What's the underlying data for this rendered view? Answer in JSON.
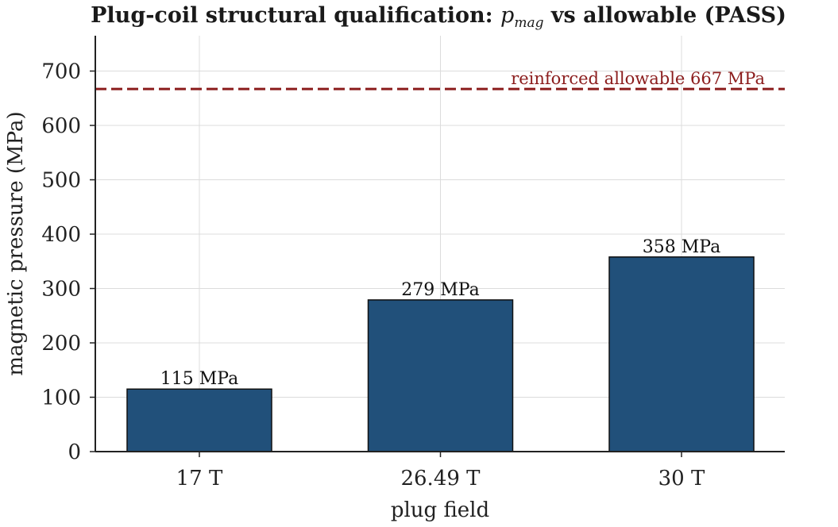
{
  "chart_data": {
    "type": "bar",
    "title": {
      "prefix": "Plug-coil structural qualification: ",
      "symbol": "p",
      "subscript": "mag",
      "suffix": " vs allowable (PASS)"
    },
    "xlabel": "plug field",
    "ylabel": "magnetic pressure  (MPa)",
    "categories": [
      "17 T",
      "26.49 T",
      "30 T"
    ],
    "values": [
      115,
      279,
      358
    ],
    "data_labels": [
      "115 MPa",
      "279 MPa",
      "358 MPa"
    ],
    "ylim": [
      0,
      765
    ],
    "yticks": [
      0,
      100,
      200,
      300,
      400,
      500,
      600,
      700
    ],
    "grid": true,
    "bar_color": "#21507a",
    "reference_line": {
      "value": 667,
      "label": "reinforced allowable 667 MPa",
      "color": "#8b1c1c",
      "style": "dashed"
    }
  }
}
